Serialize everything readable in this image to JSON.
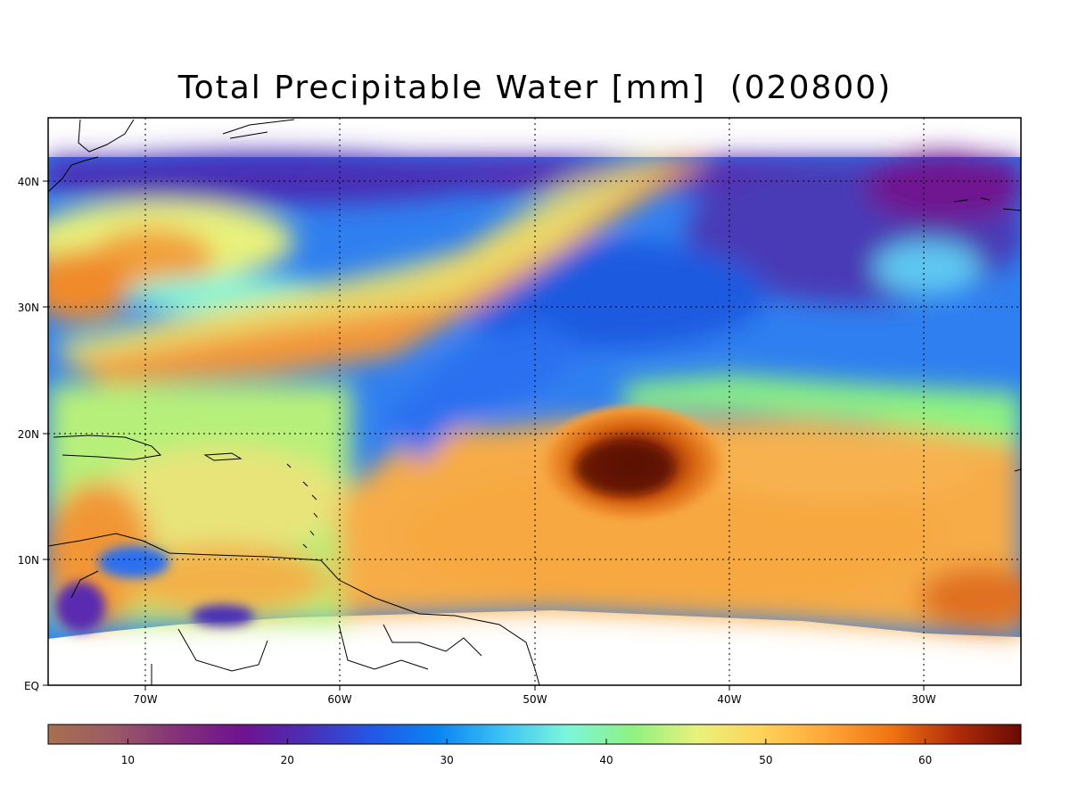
{
  "title": "Total Precipitable Water [mm]  (020800)",
  "map": {
    "lat_labels": [
      "40N",
      "30N",
      "20N",
      "10N",
      "EQ"
    ],
    "lon_labels": [
      "70W",
      "60W",
      "50W",
      "40W",
      "30W"
    ],
    "grid": "dotted"
  },
  "colorbar": {
    "ticks": [
      "10",
      "20",
      "30",
      "40",
      "50",
      "60"
    ],
    "range": [
      5,
      66
    ],
    "colors": [
      "#a8704f",
      "#9a5a66",
      "#84307a",
      "#6f1290",
      "#4a2fb6",
      "#2357e6",
      "#0a84f2",
      "#3cc2f4",
      "#7cf6dc",
      "#8ef281",
      "#e8f27c",
      "#ffd25a",
      "#ffa638",
      "#f07412",
      "#b02c0a",
      "#6a0a04"
    ],
    "units": "mm"
  },
  "colors": {
    "storm_core": "#5a1206",
    "ocean_dry": "#4a2fb6",
    "land_coast": "#000000"
  }
}
